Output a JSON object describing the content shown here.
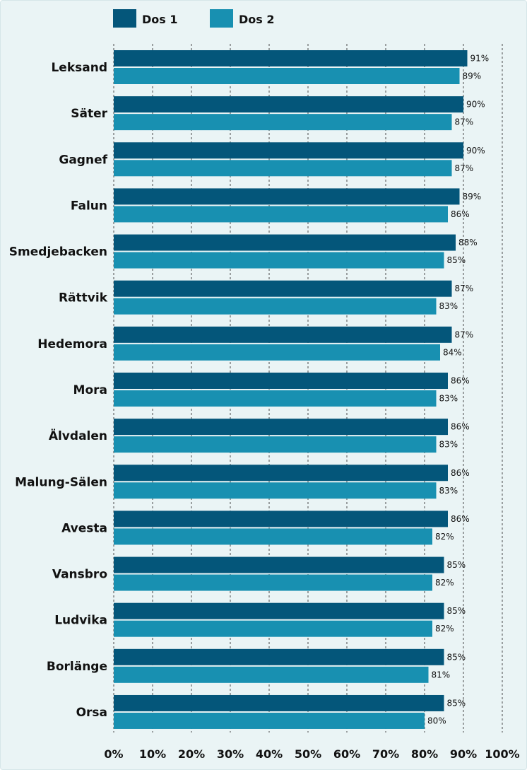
{
  "chart_data": {
    "type": "bar",
    "orientation": "horizontal",
    "categories": [
      "Leksand",
      "Säter",
      "Gagnef",
      "Falun",
      "Smedjebacken",
      "Rättvik",
      "Hedemora",
      "Mora",
      "Älvdalen",
      "Malung-Sälen",
      "Avesta",
      "Vansbro",
      "Ludvika",
      "Borlänge",
      "Orsa"
    ],
    "series": [
      {
        "name": "Dos 1",
        "color": "#04567a",
        "values": [
          91,
          90,
          90,
          89,
          88,
          87,
          87,
          86,
          86,
          86,
          86,
          85,
          85,
          85,
          85
        ],
        "labels": [
          "91%",
          "90%",
          "90%",
          "89%",
          "88%",
          "87%",
          "87%",
          "86%",
          "86%",
          "86%",
          "86%",
          "85%",
          "85%",
          "85%",
          "85%"
        ]
      },
      {
        "name": "Dos 2",
        "color": "#1890b1",
        "values": [
          89,
          87,
          87,
          86,
          85,
          83,
          84,
          83,
          83,
          83,
          82,
          82,
          82,
          81,
          80
        ],
        "labels": [
          "89%",
          "87%",
          "87%",
          "86%",
          "85%",
          "83%",
          "84%",
          "83%",
          "83%",
          "83%",
          "82%",
          "82%",
          "82%",
          "81%",
          "80%"
        ]
      }
    ],
    "xlim": [
      0,
      100
    ],
    "ticks": [
      0,
      10,
      20,
      30,
      40,
      50,
      60,
      70,
      80,
      90,
      100
    ],
    "tick_labels": [
      "0%",
      "10%",
      "20%",
      "30%",
      "40%",
      "50%",
      "60%",
      "70%",
      "80%",
      "90%",
      "100%"
    ],
    "grid": "vertical dashed",
    "legend_position": "top-left"
  }
}
